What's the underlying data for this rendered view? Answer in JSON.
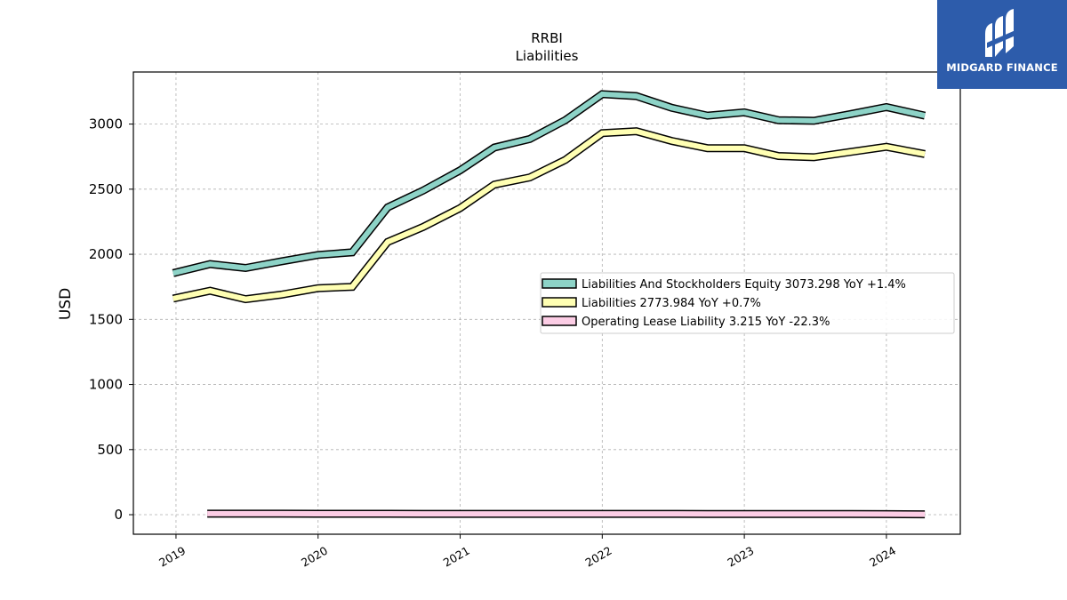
{
  "brand": {
    "name": "MIDGARD FINANCE",
    "background": "#2d5cab",
    "logo_icon": "midgard-logo-icon"
  },
  "chart_data": {
    "type": "line",
    "title": "RRBI",
    "subtitle": "Liabilities",
    "xlabel": "",
    "ylabel": "USD",
    "ylim": [
      -150,
      3400
    ],
    "xlim": [
      2018.7,
      2024.52
    ],
    "grid": true,
    "legend_position": "center-right",
    "x_ticks": [
      2019,
      2020,
      2021,
      2022,
      2023,
      2024
    ],
    "x_tick_labels": [
      "2019",
      "2020",
      "2021",
      "2022",
      "2023",
      "2024"
    ],
    "y_ticks": [
      0,
      500,
      1000,
      1500,
      2000,
      2500,
      3000
    ],
    "y_tick_labels": [
      "0",
      "500",
      "1000",
      "1500",
      "2000",
      "2500",
      "3000"
    ],
    "series": [
      {
        "name": "Liabilities And Stockholders Equity",
        "legend_label": "Liabilities And Stockholders Equity  3073.298 YoY +1.4%",
        "color": "#8dd3c7",
        "x": [
          2018.98,
          2019.24,
          2019.49,
          2019.74,
          2020.0,
          2020.24,
          2020.49,
          2020.74,
          2021.0,
          2021.24,
          2021.49,
          2021.74,
          2022.0,
          2022.24,
          2022.49,
          2022.74,
          2023.0,
          2023.24,
          2023.49,
          2023.74,
          2024.0,
          2024.27
        ],
        "values": [
          1855,
          1925,
          1895,
          1945,
          1995,
          2015,
          2360,
          2490,
          2645,
          2820,
          2885,
          3030,
          3230,
          3215,
          3125,
          3065,
          3090,
          3030,
          3025,
          3075,
          3130,
          3065
        ]
      },
      {
        "name": "Liabilities",
        "legend_label": "Liabilities  2773.984 YoY +0.7%",
        "color": "#ffffb3",
        "x": [
          2018.98,
          2019.24,
          2019.49,
          2019.74,
          2020.0,
          2020.24,
          2020.49,
          2020.74,
          2021.0,
          2021.24,
          2021.49,
          2021.74,
          2022.0,
          2022.24,
          2022.49,
          2022.74,
          2023.0,
          2023.24,
          2023.49,
          2023.74,
          2024.0,
          2024.27
        ],
        "values": [
          1660,
          1720,
          1655,
          1690,
          1740,
          1750,
          2095,
          2210,
          2355,
          2535,
          2590,
          2725,
          2930,
          2945,
          2870,
          2815,
          2815,
          2755,
          2745,
          2785,
          2825,
          2770
        ]
      },
      {
        "name": "Operating Lease Liability",
        "legend_label": "Operating Lease Liability  3.215 YoY -22.3%",
        "color": "#fccde5",
        "x": [
          2019.22,
          2019.49,
          2019.74,
          2020.0,
          2020.24,
          2020.49,
          2020.74,
          2021.0,
          2021.24,
          2021.49,
          2021.74,
          2022.0,
          2022.24,
          2022.49,
          2022.74,
          2023.0,
          2023.24,
          2023.49,
          2023.74,
          2024.0,
          2024.27
        ],
        "values": [
          8,
          8,
          8,
          7,
          7,
          7,
          6,
          6,
          6,
          6,
          6,
          6,
          6,
          6,
          5,
          5,
          5,
          5,
          5,
          4,
          3.2
        ]
      }
    ]
  }
}
